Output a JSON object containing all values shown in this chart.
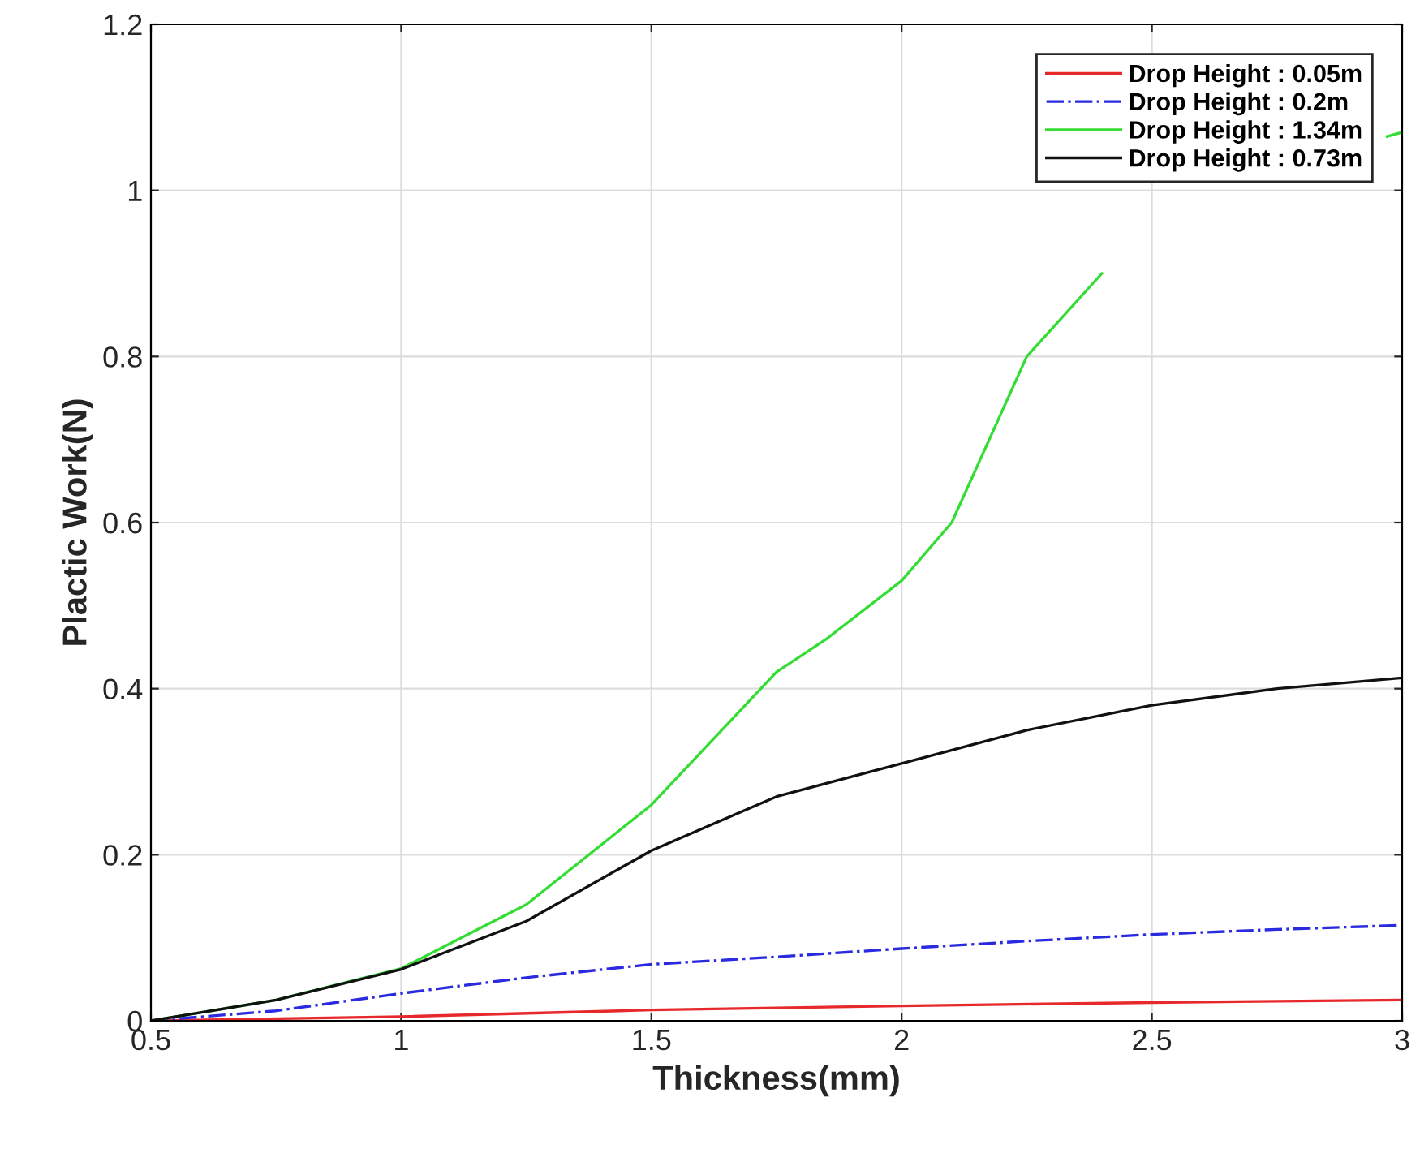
{
  "chart_data": {
    "type": "line",
    "xlabel": "Thickness(mm)",
    "ylabel": "Plactic Work(N)",
    "xlim": [
      0.5,
      3
    ],
    "xticks": [
      0.5,
      1,
      1.5,
      2,
      2.5,
      3
    ],
    "ylim": [
      0,
      1.2
    ],
    "yticks": [
      0,
      0.2,
      0.4,
      0.6,
      0.8,
      1,
      1.2
    ],
    "grid": true,
    "legend": "top right",
    "series": [
      {
        "name": "Drop Height : 0.05m",
        "color": "#e8292c",
        "line_style": "solid",
        "x": [
          0.5,
          1,
          1.5,
          2,
          2.5,
          3
        ],
        "values": [
          0,
          0.005,
          0.013,
          0.018,
          0.022,
          0.025
        ]
      },
      {
        "name": "Drop Height : 0.2m",
        "color": "#2a2ae0",
        "line_style": "dashdot",
        "x": [
          0.5,
          0.75,
          1,
          1.25,
          1.5,
          1.75,
          2,
          2.25,
          2.5,
          2.75,
          3
        ],
        "values": [
          0,
          0.012,
          0.033,
          0.052,
          0.068,
          0.077,
          0.087,
          0.096,
          0.104,
          0.11,
          0.115
        ]
      },
      {
        "name": "Drop Height : 1.34m",
        "color": "#33dd33",
        "line_style": "solid",
        "x": [
          0.5,
          0.75,
          1,
          1.25,
          1.5,
          1.75,
          1.85,
          2,
          2.1,
          2.25,
          2.4,
          2.6,
          2.8,
          2.97,
          3
        ],
        "values": [
          0,
          0.025,
          0.063,
          0.14,
          0.26,
          0.42,
          0.46,
          0.53,
          0.6,
          0.8,
          0.9,
          null,
          null,
          1.065,
          1.07
        ]
      },
      {
        "name": "Drop Height : 0.73m",
        "color": "#111111",
        "line_style": "solid",
        "x": [
          0.5,
          0.75,
          1,
          1.25,
          1.5,
          1.75,
          2,
          2.25,
          2.5,
          2.75,
          3
        ],
        "values": [
          0,
          0.025,
          0.062,
          0.12,
          0.205,
          0.27,
          0.31,
          0.35,
          0.38,
          0.4,
          0.413
        ]
      }
    ]
  }
}
